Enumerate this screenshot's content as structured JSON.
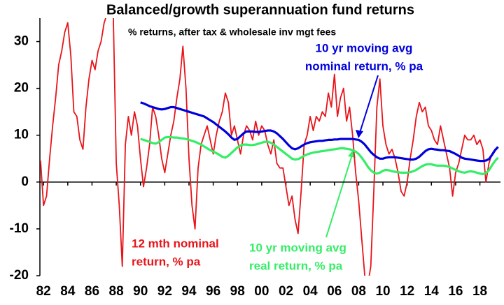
{
  "chart_data": {
    "type": "line",
    "title": "Balanced/growth superannuation fund returns",
    "subtitle": "% returns, after tax & wholesale inv mgt fees",
    "x": [
      1981.75,
      1982,
      1982.25,
      1982.5,
      1982.75,
      1983,
      1983.25,
      1983.5,
      1983.75,
      1984,
      1984.25,
      1984.5,
      1984.75,
      1985,
      1985.25,
      1985.5,
      1985.75,
      1986,
      1986.25,
      1986.5,
      1986.75,
      1987,
      1987.25,
      1987.5,
      1987.75,
      1988,
      1988.25,
      1988.5,
      1988.75,
      1989,
      1989.25,
      1989.5,
      1989.75,
      1990,
      1990.25,
      1990.5,
      1990.75,
      1991,
      1991.25,
      1991.5,
      1991.75,
      1992,
      1992.25,
      1992.5,
      1992.75,
      1993,
      1993.25,
      1993.5,
      1993.75,
      1994,
      1994.25,
      1994.5,
      1994.75,
      1995,
      1995.25,
      1995.5,
      1995.75,
      1996,
      1996.25,
      1996.5,
      1996.75,
      1997,
      1997.25,
      1997.5,
      1997.75,
      1998,
      1998.25,
      1998.5,
      1998.75,
      1999,
      1999.25,
      1999.5,
      1999.75,
      2000,
      2000.25,
      2000.5,
      2000.75,
      2001,
      2001.25,
      2001.5,
      2001.75,
      2002,
      2002.25,
      2002.5,
      2002.75,
      2003,
      2003.25,
      2003.5,
      2003.75,
      2004,
      2004.25,
      2004.5,
      2004.75,
      2005,
      2005.25,
      2005.5,
      2005.75,
      2006,
      2006.25,
      2006.5,
      2006.75,
      2007,
      2007.25,
      2007.5,
      2007.75,
      2008,
      2008.25,
      2008.5,
      2008.75,
      2009,
      2009.25,
      2009.5,
      2009.75,
      2010,
      2010.25,
      2010.5,
      2010.75,
      2011,
      2011.25,
      2011.5,
      2011.75,
      2012,
      2012.25,
      2012.5,
      2012.75,
      2013,
      2013.25,
      2013.5,
      2013.75,
      2014,
      2014.25,
      2014.5,
      2014.75,
      2015,
      2015.25,
      2015.5,
      2015.75,
      2016,
      2016.25,
      2016.5,
      2016.75,
      2017,
      2017.25,
      2017.5,
      2017.75,
      2018,
      2018.25,
      2018.5,
      2018.75,
      2019,
      2019.25,
      2019.5
    ],
    "series": [
      {
        "name": "12 mth nominal return, % pa",
        "color": "#e8141a",
        "values": [
          4.6,
          -5,
          -3,
          5,
          12,
          18,
          25,
          28,
          32,
          34,
          27,
          15,
          14,
          9,
          7,
          16,
          22,
          26,
          24,
          28,
          30,
          34,
          36,
          36,
          36,
          4,
          -5,
          -18,
          8,
          14,
          10,
          15,
          12,
          5,
          -1,
          3,
          8,
          16,
          14,
          10,
          5,
          2,
          6,
          10,
          13,
          18,
          22,
          29,
          20,
          5,
          -5,
          -10,
          3,
          8,
          10,
          12,
          9,
          6,
          10,
          13,
          15,
          19,
          17,
          10,
          12,
          9,
          6,
          10,
          12,
          11,
          9,
          13,
          10,
          12,
          11,
          8,
          6,
          9,
          4,
          3,
          3,
          -1,
          -5,
          -3,
          -8,
          -11,
          -2,
          8,
          10,
          14,
          11,
          14,
          13,
          15,
          14,
          19,
          16,
          23,
          14,
          18,
          20,
          13,
          16,
          10,
          2,
          -4,
          -12,
          -20,
          -22,
          -18,
          -2,
          16,
          22,
          12,
          8,
          6,
          7,
          5,
          2,
          -2,
          -3,
          0,
          5,
          9,
          14,
          17,
          15,
          16,
          12,
          11,
          9,
          8,
          12,
          9,
          6,
          3,
          -3,
          2,
          4,
          7,
          10,
          9,
          9,
          10,
          8,
          9,
          7,
          0,
          4,
          6,
          7,
          7.5
        ]
      },
      {
        "name": "10 yr moving avg nominal return, % pa",
        "color": "#0000dd",
        "values": [
          null,
          null,
          null,
          null,
          null,
          null,
          null,
          null,
          null,
          null,
          null,
          null,
          null,
          null,
          null,
          null,
          null,
          null,
          null,
          null,
          null,
          null,
          null,
          null,
          null,
          null,
          null,
          null,
          null,
          null,
          null,
          null,
          null,
          17,
          16.8,
          16.5,
          16.2,
          16,
          15.8,
          15.6,
          15.5,
          15.6,
          15.8,
          16,
          16,
          15.8,
          15.6,
          15.4,
          15.2,
          15,
          14.8,
          14.6,
          14.4,
          14.2,
          14,
          13.6,
          13.2,
          12.8,
          12.3,
          11.8,
          11.3,
          10.8,
          10.2,
          9.5,
          9,
          9.2,
          9.8,
          10.4,
          10.8,
          10.8,
          10.8,
          10.7,
          10.7,
          10.8,
          10.9,
          11,
          11,
          10.8,
          10.4,
          9.8,
          9.2,
          8.5,
          7.8,
          7.2,
          7,
          7.2,
          7.6,
          8,
          8.3,
          8.5,
          8.6,
          8.7,
          8.8,
          8.8,
          8.9,
          9,
          9,
          9.1,
          9.1,
          9.2,
          9.2,
          9.2,
          9.2,
          9.2,
          9.1,
          9,
          8.6,
          8,
          7.2,
          6.4,
          5.8,
          5.3,
          5,
          5,
          5.2,
          5.3,
          5.3,
          5.3,
          5.2,
          5.1,
          5,
          4.9,
          4.8,
          4.8,
          5,
          5.4,
          6,
          6.6,
          7,
          7.1,
          7,
          6.9,
          6.8,
          6.8,
          6.7,
          6.6,
          6.3,
          6,
          5.6,
          5.2,
          5,
          4.9,
          4.8,
          4.7,
          4.6,
          4.5,
          4.5,
          4.6,
          4.9,
          5.8,
          6.8,
          7.5
        ]
      },
      {
        "name": "10 yr moving avg real return, % pa",
        "color": "#33ee66",
        "values": [
          null,
          null,
          null,
          null,
          null,
          null,
          null,
          null,
          null,
          null,
          null,
          null,
          null,
          null,
          null,
          null,
          null,
          null,
          null,
          null,
          null,
          null,
          null,
          null,
          null,
          null,
          null,
          null,
          null,
          null,
          null,
          null,
          null,
          9.2,
          9,
          8.8,
          8.6,
          8.3,
          8.2,
          8.5,
          9,
          9.5,
          9.6,
          9.6,
          9.5,
          9.5,
          9.4,
          9.3,
          9.2,
          9,
          8.8,
          8.6,
          8.3,
          8,
          7.6,
          7.2,
          6.8,
          6.5,
          6.2,
          5.8,
          5.4,
          5.2,
          5.6,
          6.2,
          6.8,
          7.4,
          7.8,
          8,
          8,
          7.9,
          7.9,
          8,
          8.2,
          8.4,
          8.6,
          8.6,
          8.4,
          8,
          7.5,
          7,
          6.5,
          6,
          5.5,
          5,
          4.8,
          4.9,
          5.2,
          5.6,
          5.9,
          6.1,
          6.3,
          6.4,
          6.5,
          6.6,
          6.7,
          6.8,
          6.9,
          7,
          7.1,
          7.2,
          7.2,
          7.1,
          7,
          6.8,
          6.5,
          6,
          5.2,
          4.3,
          3.3,
          2.5,
          2,
          1.8,
          2,
          2.4,
          2.6,
          2.5,
          2.3,
          2.2,
          2.1,
          2,
          2,
          2,
          2.1,
          2.3,
          2.6,
          3,
          3.4,
          3.7,
          3.8,
          3.8,
          3.6,
          3.5,
          3.5,
          3.5,
          3.4,
          3.2,
          2.9,
          2.6,
          2.3,
          2.1,
          2,
          2.2,
          2.3,
          2.2,
          2,
          1.8,
          1.7,
          1.9,
          2.5,
          3.6,
          4.5,
          5.2
        ]
      }
    ],
    "annotations": [
      {
        "lines": [
          "10 yr moving avg",
          "nominal return, % pa"
        ],
        "color": "#0000dd"
      },
      {
        "lines": [
          "12 mth nominal",
          "return, % pa"
        ],
        "color": "#e8141a"
      },
      {
        "lines": [
          "10 yr moving avg",
          "real return, % pa"
        ],
        "color": "#33ee66"
      }
    ],
    "xlim": [
      1981.7,
      2019.7
    ],
    "xticks": [
      {
        "value": 1982,
        "label": "82"
      },
      {
        "value": 1984,
        "label": "84"
      },
      {
        "value": 1986,
        "label": "86"
      },
      {
        "value": 1988,
        "label": "88"
      },
      {
        "value": 1990,
        "label": "90"
      },
      {
        "value": 1992,
        "label": "92"
      },
      {
        "value": 1994,
        "label": "94"
      },
      {
        "value": 1996,
        "label": "96"
      },
      {
        "value": 1998,
        "label": "98"
      },
      {
        "value": 2000,
        "label": "00"
      },
      {
        "value": 2002,
        "label": "02"
      },
      {
        "value": 2004,
        "label": "04"
      },
      {
        "value": 2006,
        "label": "06"
      },
      {
        "value": 2008,
        "label": "08"
      },
      {
        "value": 2010,
        "label": "10"
      },
      {
        "value": 2012,
        "label": "12"
      },
      {
        "value": 2014,
        "label": "14"
      },
      {
        "value": 2016,
        "label": "16"
      },
      {
        "value": 2018,
        "label": "18"
      }
    ],
    "ylim": [
      -20,
      35
    ],
    "yticks": [
      -20,
      -10,
      0,
      10,
      20,
      30
    ],
    "grid": false
  }
}
